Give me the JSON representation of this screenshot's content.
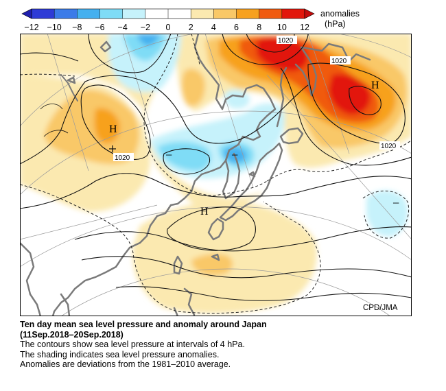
{
  "legend": {
    "title": "anomalies",
    "unit": "(hPa)",
    "ticks": [
      "−12",
      "−10",
      "−8",
      "−6",
      "−4",
      "−2",
      "0",
      "2",
      "4",
      "6",
      "8",
      "10",
      "12"
    ],
    "colors": [
      "#2e3bd6",
      "#3b7be8",
      "#45b0ef",
      "#7fdcf6",
      "#c6f2fb",
      "#ffffff",
      "#ffffff",
      "#fbe9b0",
      "#f9c867",
      "#f7a11f",
      "#f05a0f",
      "#e2170c"
    ]
  },
  "map": {
    "credit": "CPD/JMA",
    "high_label": "H",
    "low_label": "−",
    "contour_labels": [
      "1020",
      "1020",
      "1020",
      "1020"
    ]
  },
  "caption": {
    "title": "Ten day mean sea level pressure and anomaly around Japan",
    "period": "(11Sep.2018–20Sep.2018)",
    "line1": "The contours show sea level pressure at intervals of 4 hPa.",
    "line2": "The shading indicates sea level pressure anomalies.",
    "line3": "Anomalies are deviations from the 1981–2010 average."
  }
}
